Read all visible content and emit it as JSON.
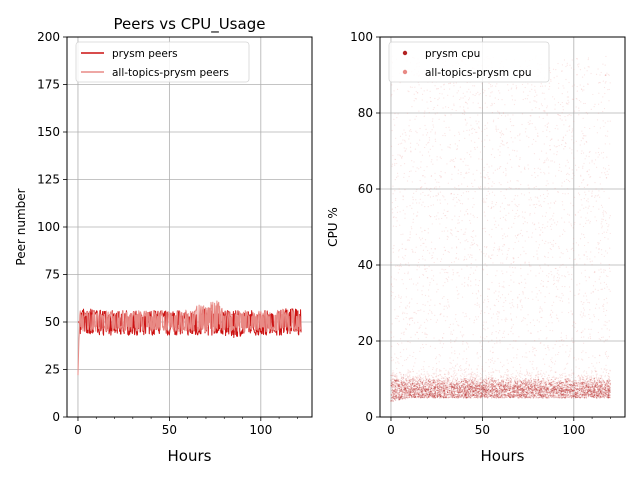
{
  "chart_data": [
    {
      "type": "line",
      "title": "Peers vs CPU_Usage",
      "xlabel": "Hours",
      "ylabel": "Peer number",
      "xlim": [
        -6,
        128
      ],
      "ylim": [
        0,
        200
      ],
      "xticks": [
        0,
        50,
        100
      ],
      "yticks": [
        0,
        25,
        50,
        75,
        100,
        125,
        150,
        175,
        200
      ],
      "grid": true,
      "legend": "top-left",
      "series": [
        {
          "name": "prysm peers",
          "color": "#cc1111",
          "x": [
            0,
            1,
            10,
            20,
            30,
            40,
            50,
            60,
            70,
            80,
            85,
            90,
            100,
            110,
            122
          ],
          "y": [
            50,
            50,
            50,
            49,
            50,
            50,
            50,
            49,
            50,
            50,
            48,
            50,
            50,
            50,
            50
          ],
          "band_low": [
            43,
            43,
            43,
            43,
            43,
            43,
            43,
            43,
            43,
            43,
            41,
            43,
            43,
            43,
            43
          ],
          "band_high": [
            57,
            57,
            57,
            56,
            56,
            56,
            56,
            56,
            57,
            56,
            56,
            56,
            56,
            57,
            57
          ]
        },
        {
          "name": "all-topics-prysm peers",
          "color": "#e88a85",
          "x": [
            0,
            0.5,
            1,
            10,
            20,
            30,
            40,
            50,
            60,
            65,
            70,
            76,
            80,
            90,
            100,
            110,
            122
          ],
          "y": [
            22,
            40,
            50,
            50,
            50,
            50,
            50,
            50,
            51,
            52,
            53,
            54,
            50,
            50,
            50,
            50,
            50
          ],
          "band_low": [
            22,
            40,
            45,
            45,
            45,
            45,
            45,
            45,
            45,
            45,
            45,
            45,
            45,
            45,
            45,
            45,
            45
          ],
          "band_high": [
            22,
            58,
            56,
            56,
            56,
            56,
            56,
            56,
            57,
            59,
            61,
            63,
            56,
            56,
            56,
            57,
            56
          ]
        }
      ]
    },
    {
      "type": "scatter",
      "xlabel": "Hours",
      "ylabel": "CPU %",
      "xlim": [
        -6,
        128
      ],
      "ylim": [
        0,
        100
      ],
      "xticks": [
        0,
        50,
        100
      ],
      "yticks": [
        0,
        20,
        40,
        60,
        80,
        100
      ],
      "grid": true,
      "legend": "top-left",
      "series": [
        {
          "name": "prysm cpu",
          "color": "#b22222",
          "x": [
            0,
            10,
            20,
            30,
            40,
            50,
            60,
            70,
            80,
            90,
            100,
            110,
            120
          ],
          "y": [
            7,
            7,
            7,
            7,
            7,
            7,
            7,
            7,
            7,
            7,
            7,
            7,
            7
          ],
          "band_low": [
            4,
            5,
            5,
            5,
            5,
            5,
            5,
            5,
            5,
            5,
            5,
            5,
            5
          ],
          "band_high": [
            14,
            10,
            10,
            10,
            10,
            10,
            10,
            10,
            10,
            10,
            10,
            10,
            10
          ]
        },
        {
          "name": "all-topics-prysm cpu",
          "color": "#e88a85",
          "x": [
            0,
            10,
            20,
            30,
            40,
            50,
            60,
            70,
            80,
            90,
            100,
            110,
            120
          ],
          "y": [
            8,
            8,
            8,
            8,
            8,
            8,
            8,
            8,
            8,
            8,
            8,
            8,
            8
          ],
          "band_low": [
            5,
            5,
            5,
            5,
            5,
            5,
            5,
            5,
            5,
            5,
            5,
            5,
            5
          ],
          "band_high": [
            95,
            95,
            95,
            95,
            95,
            95,
            95,
            95,
            95,
            95,
            95,
            95,
            95
          ]
        }
      ]
    }
  ]
}
